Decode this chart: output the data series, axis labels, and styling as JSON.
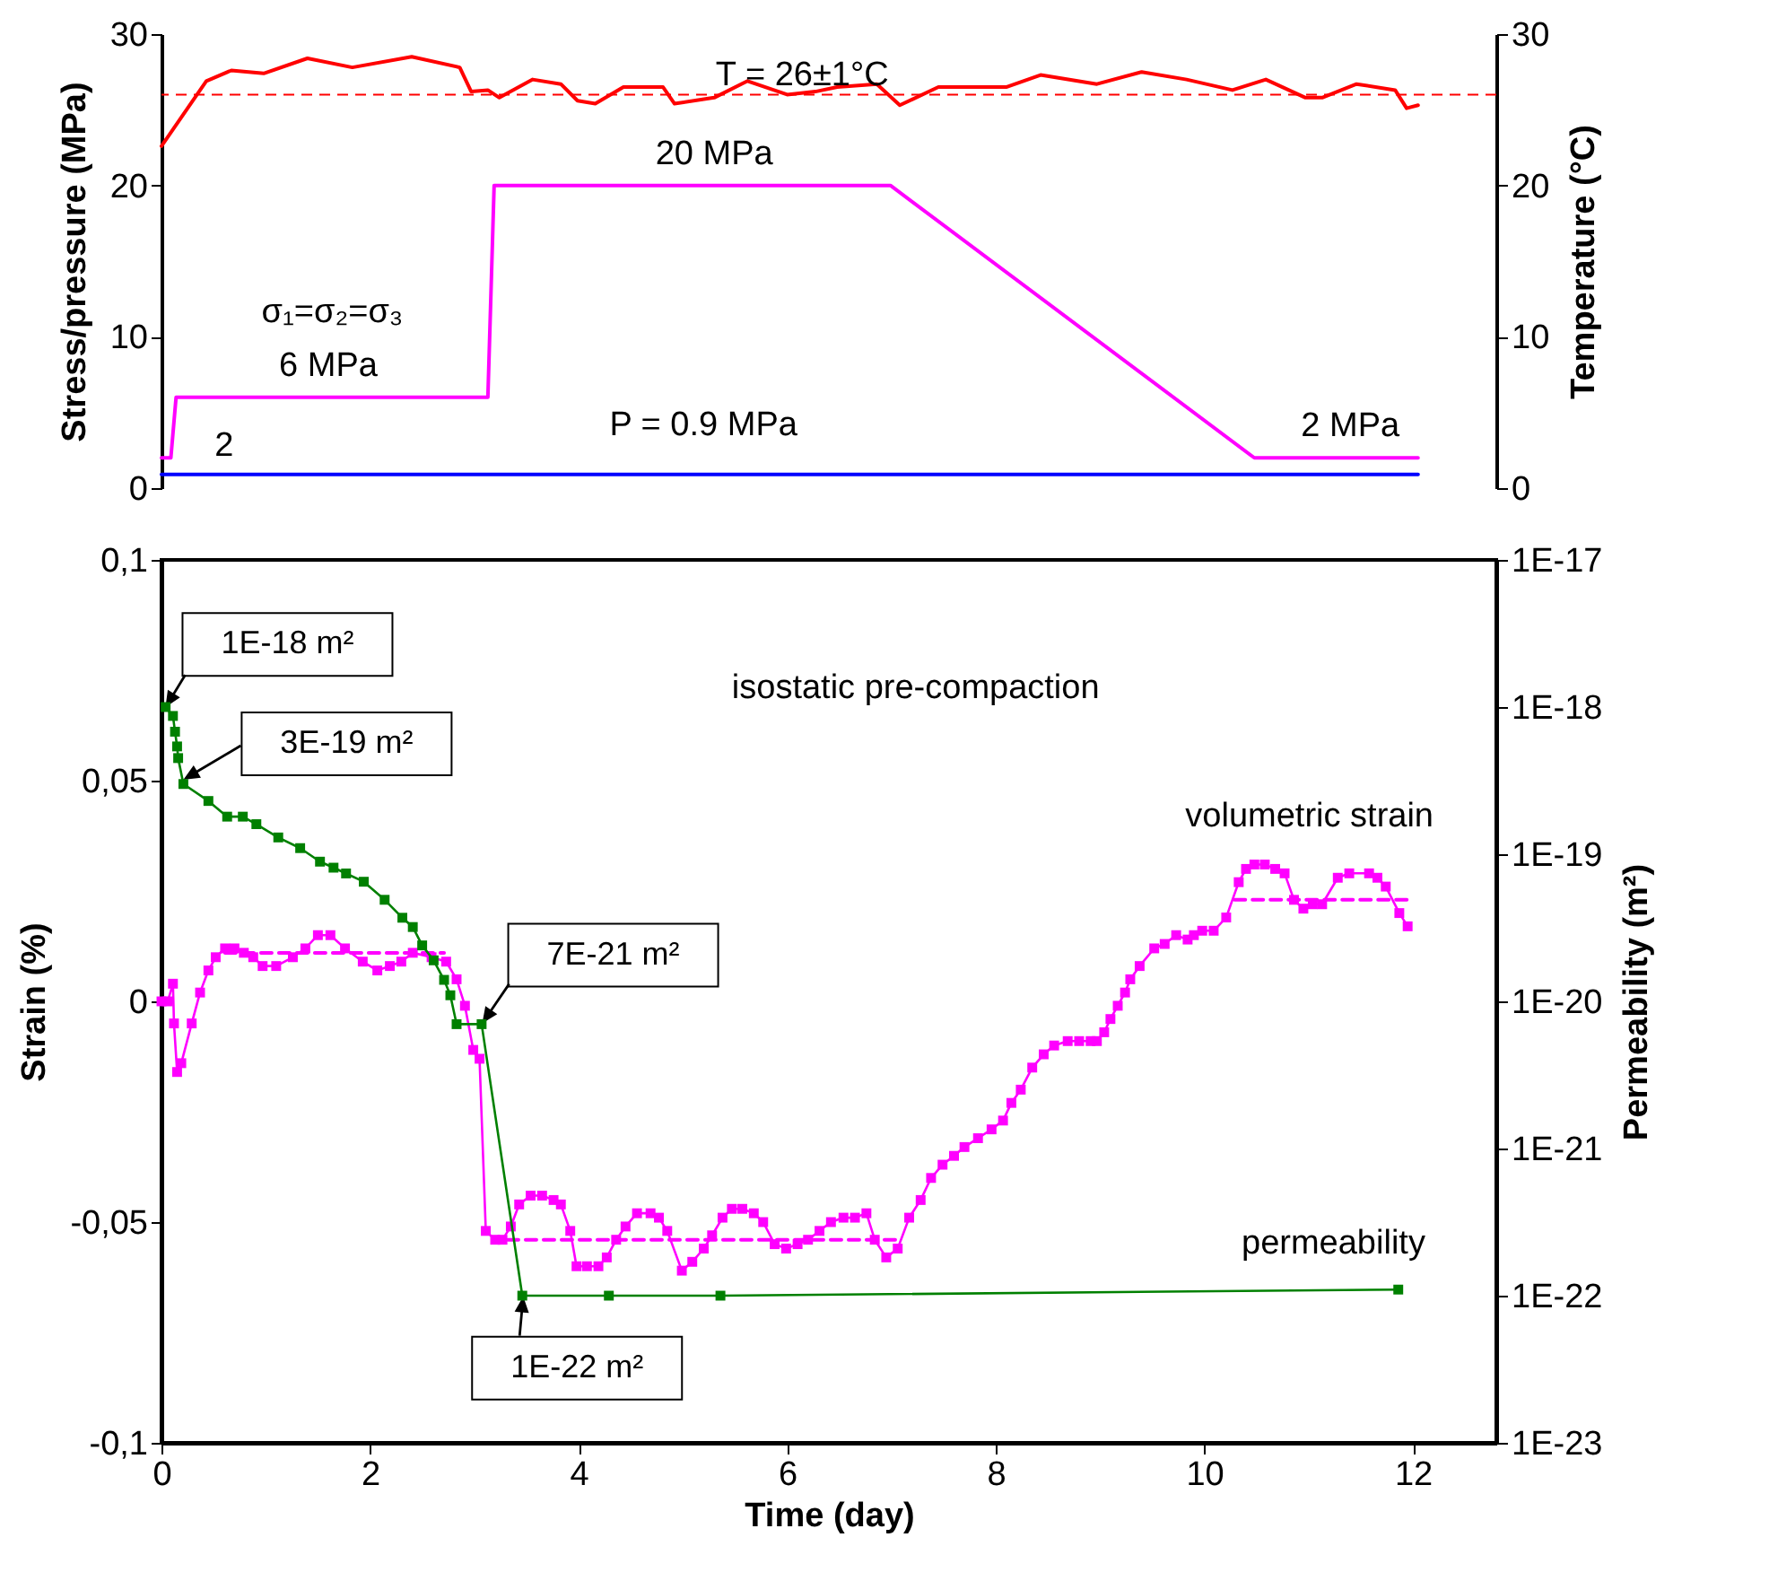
{
  "chart_data": [
    {
      "type": "line",
      "ylabel": "Stress/pressure  (MPa)",
      "y2label": "Temperature   (°C)",
      "xlim": [
        0,
        12.8
      ],
      "ylim": [
        0,
        30
      ],
      "yticks": [
        0,
        10,
        20,
        30
      ],
      "y2lim": [
        0,
        30
      ],
      "y2ticks": [
        0,
        10,
        20,
        30
      ],
      "tick_labels": "y",
      "marker": "none",
      "annotations": [
        {
          "text": "20 MPa",
          "x": 5.3,
          "y": 20
        },
        {
          "text": "6 MPa",
          "x": 1.6,
          "y": 6
        },
        {
          "text": "2 MPa",
          "x": 11.4,
          "y": 2
        },
        "2",
        "σ₁=σ₂=σ₃",
        "P = 0.9 MPa"
      ],
      "ref_lines": [
        {
          "axis": "y2",
          "value": 26,
          "label": "T = 26±1°C",
          "color": "#ff0000",
          "line_style": "dashed"
        }
      ],
      "series": [
        {
          "color": "#ff0000",
          "axis": "y2",
          "x": [
            0,
            0.43,
            0.67,
            0.98,
            1.4,
            1.83,
            2.4,
            2.86,
            2.97,
            3.13,
            3.24,
            3.56,
            3.83,
            3.99,
            4.16,
            4.43,
            4.81,
            4.92,
            5.3,
            5.62,
            6.0,
            6.27,
            6.48,
            6.86,
            7.08,
            7.45,
            8.1,
            8.43,
            8.97,
            9.4,
            9.83,
            10.27,
            10.59,
            10.97,
            11.13,
            11.46,
            11.83,
            11.94,
            12.05
          ],
          "values": [
            22.6,
            26.9,
            27.6,
            27.4,
            28.4,
            27.8,
            28.5,
            27.8,
            26.2,
            26.3,
            25.8,
            27.0,
            26.7,
            25.6,
            25.4,
            26.5,
            26.5,
            25.4,
            25.8,
            26.9,
            26.0,
            26.2,
            26.5,
            26.7,
            25.3,
            26.5,
            26.5,
            27.3,
            26.7,
            27.5,
            27.0,
            26.3,
            27.0,
            25.8,
            25.8,
            26.7,
            26.3,
            25.1,
            25.3
          ]
        },
        {
          "color": "#ff00ff",
          "x": [
            0,
            0.09,
            0.14,
            3.13,
            3.19,
            6.99,
            10.48,
            12.05
          ],
          "values": [
            2,
            2,
            6,
            6,
            20,
            20,
            2,
            2
          ]
        },
        {
          "color": "#0000ff",
          "x": [
            0,
            12.05
          ],
          "values": [
            0.9,
            0.9
          ]
        }
      ]
    },
    {
      "type": "line",
      "xlabel": "Time   (day)",
      "ylabel": "Strain   (%)",
      "y2label": "Permeability  (m²)",
      "xlim": [
        0,
        12.8
      ],
      "xticks": [
        0,
        2,
        4,
        6,
        8,
        10,
        12
      ],
      "ylim": [
        -0.1,
        0.1
      ],
      "yticks": [
        {
          "value": -0.1,
          "label": "-0,1"
        },
        {
          "value": -0.05,
          "label": "-0,05"
        },
        0,
        {
          "value": 0.05,
          "label": "0,05"
        },
        {
          "value": 0.1,
          "label": "0,1"
        }
      ],
      "y2lim": [
        1e-23,
        1e-17
      ],
      "y2ticks": [
        {
          "value": 1e-23,
          "label": "1E-23"
        },
        {
          "value": 1e-22,
          "label": "1E-22"
        },
        {
          "value": 1e-21,
          "label": "1E-21"
        },
        {
          "value": 1e-20,
          "label": "1E-20"
        },
        {
          "value": 1e-19,
          "label": "1E-19"
        },
        {
          "value": 1e-18,
          "label": "1E-18"
        },
        {
          "value": 1e-17,
          "label": "1E-17"
        }
      ],
      "log": "y2",
      "annotations": [
        "isostatic pre-compaction",
        "1E-18 m²",
        "3E-19 m²",
        "7E-21 m²",
        "1E-22 m²"
      ],
      "series": [
        {
          "name": "volumetric strain",
          "color": "#ff00ff",
          "marker": "square",
          "x": [
            0,
            0.06,
            0.11,
            0.12,
            0.15,
            0.19,
            0.29,
            0.37,
            0.45,
            0.52,
            0.61,
            0.7,
            0.79,
            0.88,
            0.97,
            1.1,
            1.26,
            1.38,
            1.5,
            1.62,
            1.76,
            1.93,
            2.07,
            2.19,
            2.3,
            2.41,
            2.59,
            2.73,
            2.83,
            2.91,
            2.99,
            3.05,
            3.11,
            3.2,
            3.27,
            3.35,
            3.43,
            3.54,
            3.65,
            3.76,
            3.83,
            3.92,
            3.98,
            4.08,
            4.19,
            4.27,
            4.36,
            4.45,
            4.56,
            4.69,
            4.77,
            4.85,
            4.99,
            5.09,
            5.2,
            5.28,
            5.38,
            5.47,
            5.57,
            5.68,
            5.77,
            5.88,
            5.99,
            6.1,
            6.2,
            6.31,
            6.42,
            6.54,
            6.65,
            6.76,
            6.84,
            6.95,
            7.06,
            7.17,
            7.28,
            7.38,
            7.49,
            7.6,
            7.7,
            7.83,
            7.96,
            8.07,
            8.15,
            8.24,
            8.35,
            8.46,
            8.56,
            8.69,
            8.8,
            8.91,
            8.97,
            9.04,
            9.1,
            9.17,
            9.24,
            9.29,
            9.38,
            9.52,
            9.62,
            9.73,
            9.84,
            9.9,
            9.98,
            10.09,
            10.21,
            10.33,
            10.4,
            10.48,
            10.58,
            10.68,
            10.77,
            10.86,
            10.95,
            11.04,
            11.13,
            11.28,
            11.39,
            11.58,
            11.66,
            11.74,
            11.87,
            11.95
          ],
          "values": [
            0,
            0,
            0.004,
            -0.005,
            -0.016,
            -0.014,
            -0.005,
            0.002,
            0.007,
            0.01,
            0.012,
            0.012,
            0.011,
            0.01,
            0.008,
            0.008,
            0.01,
            0.012,
            0.015,
            0.015,
            0.012,
            0.009,
            0.007,
            0.008,
            0.009,
            0.011,
            0.01,
            0.009,
            0.005,
            -0.001,
            -0.011,
            -0.013,
            -0.052,
            -0.054,
            -0.054,
            -0.051,
            -0.046,
            -0.044,
            -0.044,
            -0.045,
            -0.046,
            -0.052,
            -0.06,
            -0.06,
            -0.06,
            -0.058,
            -0.054,
            -0.051,
            -0.048,
            -0.048,
            -0.049,
            -0.052,
            -0.061,
            -0.059,
            -0.056,
            -0.053,
            -0.049,
            -0.047,
            -0.047,
            -0.048,
            -0.05,
            -0.055,
            -0.056,
            -0.055,
            -0.054,
            -0.052,
            -0.05,
            -0.049,
            -0.049,
            -0.048,
            -0.054,
            -0.058,
            -0.056,
            -0.049,
            -0.045,
            -0.04,
            -0.037,
            -0.035,
            -0.033,
            -0.031,
            -0.029,
            -0.027,
            -0.023,
            -0.02,
            -0.015,
            -0.012,
            -0.01,
            -0.009,
            -0.009,
            -0.009,
            -0.009,
            -0.007,
            -0.004,
            -0.001,
            0.002,
            0.005,
            0.008,
            0.012,
            0.013,
            0.015,
            0.014,
            0.015,
            0.016,
            0.016,
            0.019,
            0.027,
            0.03,
            0.031,
            0.031,
            0.03,
            0.029,
            0.023,
            0.021,
            0.022,
            0.022,
            0.028,
            0.029,
            0.029,
            0.028,
            0.026,
            0.02,
            0.017
          ]
        },
        {
          "name": "permeability",
          "color": "#008000",
          "axis": "y2",
          "marker": "square",
          "x": [
            0.04,
            0.11,
            0.13,
            0.15,
            0.16,
            0.21,
            0.45,
            0.63,
            0.78,
            0.91,
            1.12,
            1.33,
            1.52,
            1.65,
            1.77,
            1.94,
            2.14,
            2.31,
            2.41,
            2.5,
            2.61,
            2.71,
            2.77,
            2.83,
            3.07,
            3.46,
            4.29,
            5.36,
            11.86
          ],
          "values": [
            1e-18,
            8.7e-19,
            6.8e-19,
            5.4e-19,
            4.5e-19,
            3e-19,
            2.3e-19,
            1.8e-19,
            1.8e-19,
            1.6e-19,
            1.3e-19,
            1.1e-19,
            8.9e-20,
            8.1e-20,
            7.4e-20,
            6.5e-20,
            4.9e-20,
            3.7e-20,
            3.2e-20,
            2.4e-20,
            1.9e-20,
            1.4e-20,
            1.1e-20,
            7e-21,
            7e-21,
            1e-22,
            1e-22,
            1e-22,
            1.1e-22
          ]
        },
        {
          "color": "#ff00ff",
          "line_style": "dashed",
          "marker": "none",
          "x": [
            0.61,
            2.71
          ],
          "values": [
            0.011,
            0.011
          ]
        },
        {
          "color": "#ff00ff",
          "line_style": "dashed",
          "marker": "none",
          "x": [
            3.32,
            7.08
          ],
          "values": [
            -0.054,
            -0.054
          ]
        },
        {
          "color": "#ff00ff",
          "line_style": "dashed",
          "marker": "none",
          "x": [
            10.29,
            11.97
          ],
          "values": [
            0.023,
            0.023
          ]
        }
      ]
    }
  ]
}
